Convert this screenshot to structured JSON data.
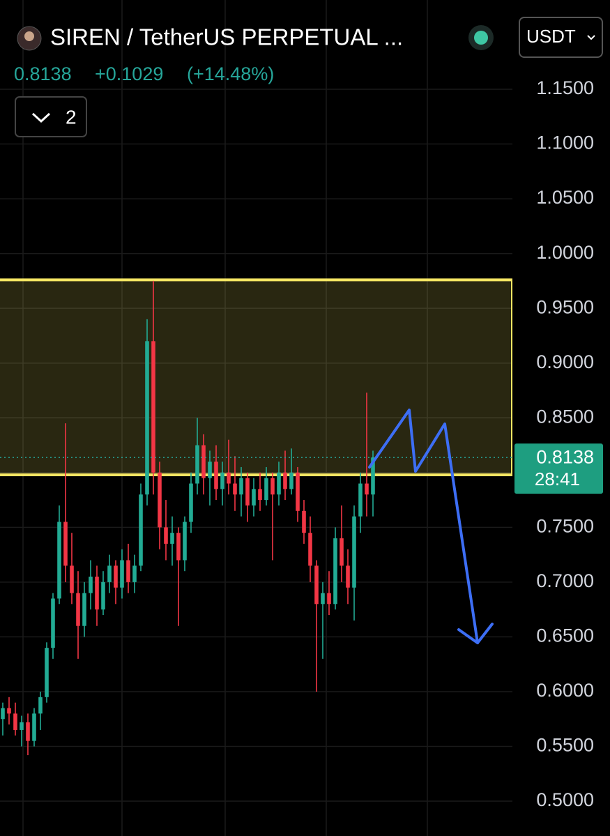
{
  "header": {
    "symbol": "SIREN / TetherUS PERPETUAL ...",
    "quote_currency": "USDT",
    "change": "+0.1029",
    "change_pct": "(+14.48%)",
    "indicator_count": "2",
    "countdown": "28:41"
  },
  "chart_data": {
    "type": "candlestick",
    "up_color": "#22ab94",
    "down_color": "#f23645",
    "open": [
      0.575,
      0.585,
      0.58,
      0.565,
      0.572,
      0.555,
      0.58,
      0.595,
      0.64,
      0.685,
      0.755,
      0.715,
      0.69,
      0.66,
      0.69,
      0.705,
      0.675,
      0.7,
      0.715,
      0.695,
      0.72,
      0.7,
      0.715,
      0.78,
      0.92,
      0.8,
      0.75,
      0.735,
      0.745,
      0.72,
      0.755,
      0.79,
      0.825,
      0.795,
      0.81,
      0.785,
      0.8,
      0.79,
      0.78,
      0.795,
      0.77,
      0.785,
      0.775,
      0.795,
      0.78,
      0.8,
      0.785,
      0.8,
      0.765,
      0.745,
      0.715,
      0.68,
      0.69,
      0.68,
      0.74,
      0.715,
      0.695,
      0.76,
      0.79,
      0.78
    ],
    "high": [
      0.59,
      0.595,
      0.59,
      0.578,
      0.58,
      0.585,
      0.6,
      0.645,
      0.69,
      0.77,
      0.845,
      0.745,
      0.71,
      0.7,
      0.72,
      0.715,
      0.71,
      0.725,
      0.72,
      0.73,
      0.735,
      0.725,
      0.79,
      0.94,
      0.975,
      0.81,
      0.775,
      0.76,
      0.75,
      0.76,
      0.8,
      0.85,
      0.835,
      0.82,
      0.825,
      0.81,
      0.83,
      0.815,
      0.805,
      0.8,
      0.795,
      0.8,
      0.805,
      0.8,
      0.81,
      0.82,
      0.822,
      0.805,
      0.775,
      0.76,
      0.72,
      0.7,
      0.71,
      0.75,
      0.77,
      0.73,
      0.77,
      0.8,
      0.873,
      0.82
    ],
    "low": [
      0.56,
      0.57,
      0.56,
      0.55,
      0.542,
      0.55,
      0.565,
      0.59,
      0.63,
      0.68,
      0.7,
      0.68,
      0.63,
      0.65,
      0.675,
      0.66,
      0.67,
      0.69,
      0.68,
      0.685,
      0.69,
      0.69,
      0.71,
      0.77,
      0.78,
      0.73,
      0.72,
      0.715,
      0.66,
      0.71,
      0.745,
      0.78,
      0.78,
      0.77,
      0.775,
      0.77,
      0.78,
      0.765,
      0.76,
      0.755,
      0.76,
      0.765,
      0.77,
      0.72,
      0.77,
      0.775,
      0.78,
      0.755,
      0.735,
      0.7,
      0.6,
      0.63,
      0.67,
      0.675,
      0.7,
      0.68,
      0.665,
      0.745,
      0.76,
      0.76
    ],
    "close": [
      0.585,
      0.58,
      0.565,
      0.572,
      0.555,
      0.58,
      0.595,
      0.64,
      0.685,
      0.755,
      0.715,
      0.69,
      0.66,
      0.69,
      0.705,
      0.675,
      0.7,
      0.715,
      0.695,
      0.72,
      0.7,
      0.715,
      0.78,
      0.92,
      0.8,
      0.75,
      0.735,
      0.745,
      0.72,
      0.755,
      0.79,
      0.825,
      0.795,
      0.81,
      0.785,
      0.8,
      0.79,
      0.78,
      0.795,
      0.77,
      0.785,
      0.775,
      0.795,
      0.78,
      0.8,
      0.785,
      0.8,
      0.765,
      0.745,
      0.715,
      0.68,
      0.69,
      0.68,
      0.74,
      0.715,
      0.695,
      0.76,
      0.79,
      0.78,
      0.8138
    ],
    "last_price": {
      "value": 0.8138,
      "label": "0.8138"
    },
    "zone": {
      "low": 0.798,
      "high": 0.976,
      "color": "#f5e663"
    },
    "ylim": [
      0.4682,
      1.2315
    ],
    "yticks": [
      {
        "value": 1.15,
        "label": "1.1500"
      },
      {
        "value": 1.1,
        "label": "1.1000"
      },
      {
        "value": 1.05,
        "label": "1.0500"
      },
      {
        "value": 1.0,
        "label": "1.0000"
      },
      {
        "value": 0.95,
        "label": "0.9500"
      },
      {
        "value": 0.9,
        "label": "0.9000"
      },
      {
        "value": 0.85,
        "label": "0.8500"
      },
      {
        "value": 0.8,
        "label": "0.8000"
      },
      {
        "value": 0.75,
        "label": "0.7500"
      },
      {
        "value": 0.7,
        "label": "0.7000"
      },
      {
        "value": 0.65,
        "label": "0.6500"
      },
      {
        "value": 0.6,
        "label": "0.6000"
      },
      {
        "value": 0.55,
        "label": "0.5500"
      },
      {
        "value": 0.5,
        "label": "0.5000"
      }
    ],
    "grid": true
  }
}
